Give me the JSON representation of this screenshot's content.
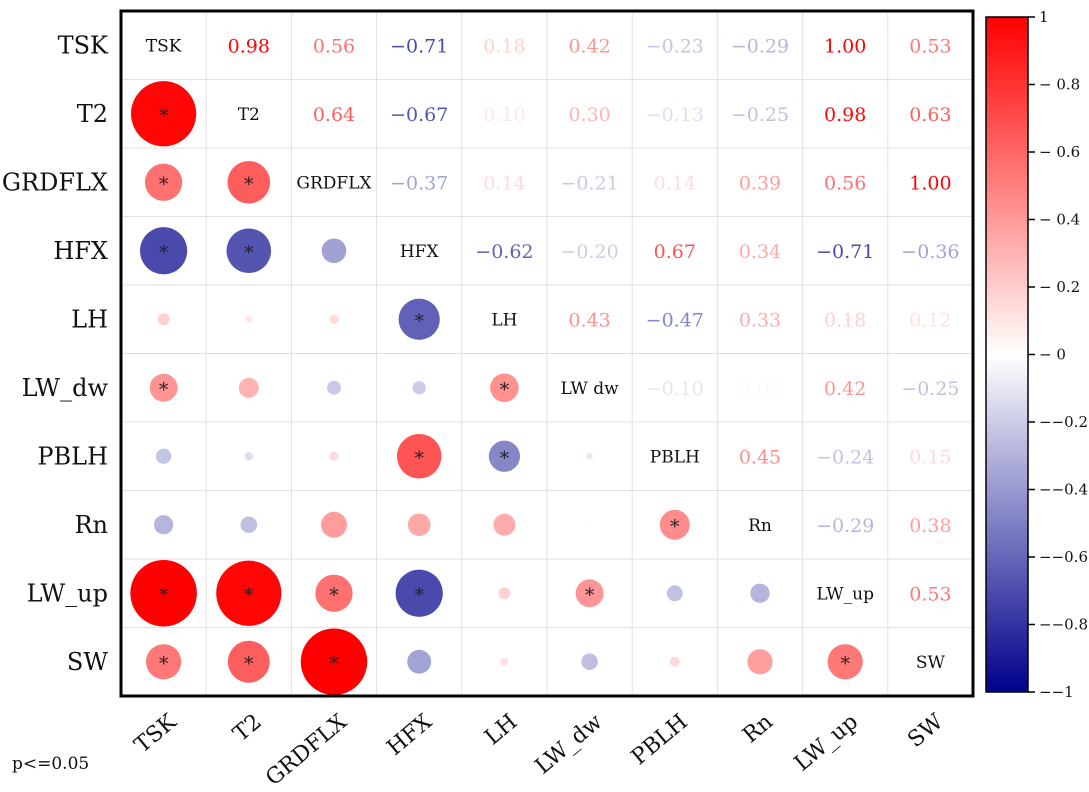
{
  "chart_data": {
    "type": "heatmap",
    "variables": [
      "TSK",
      "T2",
      "GRDFLX",
      "HFX",
      "LH",
      "LW_dw",
      "PBLH",
      "Rn",
      "LW_up",
      "SW"
    ],
    "row_labels": [
      "TSK",
      "T2",
      "GRDFLX",
      "HFX",
      "LH",
      "LW_dw",
      "PBLH",
      "Rn",
      "LW_up",
      "SW"
    ],
    "col_labels": [
      "TSK",
      "T2",
      "GRDFLX",
      "HFX",
      "LH",
      "LW_dw",
      "PBLH",
      "Rn",
      "LW_up",
      "SW"
    ],
    "diagonal_labels": [
      "TSK",
      "T2",
      "GRDFLX",
      "HFX",
      "LH",
      "LW dw",
      "PBLH",
      "Rn",
      "LW_up",
      "SW"
    ],
    "upper_text": [
      [
        null,
        "0.98",
        "0.56",
        "−0.71",
        "0.18",
        "0.42",
        "−0.23",
        "−0.29",
        "1.00",
        "0.53"
      ],
      [
        null,
        null,
        "0.64",
        "−0.67",
        "0.10",
        "0.30",
        "−0.13",
        "−0.25",
        "0.98",
        "0.63"
      ],
      [
        null,
        null,
        null,
        "−0.37",
        "0.14",
        "−0.21",
        "0.14",
        "0.39",
        "0.56",
        "1.00"
      ],
      [
        null,
        null,
        null,
        null,
        "−0.62",
        "−0.20",
        "0.67",
        "0.34",
        "−0.71",
        "−0.36"
      ],
      [
        null,
        null,
        null,
        null,
        null,
        "0.43",
        "−0.47",
        "0.33",
        "0.18",
        "0.12"
      ],
      [
        null,
        null,
        null,
        null,
        null,
        null,
        "−0.10",
        "0.03",
        "0.42",
        "−0.25"
      ],
      [
        null,
        null,
        null,
        null,
        null,
        null,
        null,
        "0.45",
        "−0.24",
        "0.15"
      ],
      [
        null,
        null,
        null,
        null,
        null,
        null,
        null,
        null,
        "−0.29",
        "0.38"
      ],
      [
        null,
        null,
        null,
        null,
        null,
        null,
        null,
        null,
        null,
        "0.53"
      ],
      [
        null,
        null,
        null,
        null,
        null,
        null,
        null,
        null,
        null,
        null
      ]
    ],
    "lower_circles": [
      [
        null,
        null,
        null,
        null,
        null,
        null,
        null,
        null,
        null,
        null
      ],
      [
        0.98,
        null,
        null,
        null,
        null,
        null,
        null,
        null,
        null,
        null
      ],
      [
        0.56,
        0.64,
        null,
        null,
        null,
        null,
        null,
        null,
        null,
        null
      ],
      [
        -0.71,
        -0.67,
        -0.37,
        null,
        null,
        null,
        null,
        null,
        null,
        null
      ],
      [
        0.18,
        0.1,
        0.14,
        -0.62,
        null,
        null,
        null,
        null,
        null,
        null
      ],
      [
        0.42,
        0.3,
        -0.21,
        -0.2,
        0.43,
        null,
        null,
        null,
        null,
        null
      ],
      [
        -0.23,
        -0.13,
        0.14,
        0.67,
        -0.47,
        -0.1,
        null,
        null,
        null,
        null
      ],
      [
        -0.29,
        -0.25,
        0.39,
        0.34,
        0.33,
        0.03,
        0.45,
        null,
        null,
        null
      ],
      [
        1.0,
        0.98,
        0.56,
        -0.71,
        0.18,
        0.42,
        -0.24,
        -0.29,
        null,
        null
      ],
      [
        0.53,
        0.63,
        1.0,
        -0.36,
        0.12,
        -0.25,
        0.15,
        0.38,
        0.53,
        null
      ]
    ],
    "significant": [
      [
        false,
        false,
        false,
        false,
        false,
        false,
        false,
        false,
        false,
        false
      ],
      [
        true,
        false,
        false,
        false,
        false,
        false,
        false,
        false,
        false,
        false
      ],
      [
        true,
        true,
        false,
        false,
        false,
        false,
        false,
        false,
        false,
        false
      ],
      [
        true,
        true,
        false,
        false,
        false,
        false,
        false,
        false,
        false,
        false
      ],
      [
        false,
        false,
        false,
        true,
        false,
        false,
        false,
        false,
        false,
        false
      ],
      [
        true,
        false,
        false,
        false,
        true,
        false,
        false,
        false,
        false,
        false
      ],
      [
        false,
        false,
        false,
        true,
        true,
        false,
        false,
        false,
        false,
        false
      ],
      [
        false,
        false,
        false,
        false,
        false,
        false,
        true,
        false,
        false,
        false
      ],
      [
        true,
        true,
        true,
        true,
        false,
        true,
        false,
        false,
        false,
        false
      ],
      [
        true,
        true,
        true,
        false,
        false,
        false,
        false,
        false,
        true,
        false
      ]
    ],
    "star_symbol": "*",
    "colorbar": {
      "range": [
        -1,
        1
      ],
      "ticks": [
        "1",
        "− 0.8",
        "− 0.6",
        "− 0.4",
        "− 0.2",
        "− 0",
        "−−0.2",
        "−−0.4",
        "−−0.6",
        "−−0.8",
        "−−1"
      ],
      "tick_values": [
        1,
        0.8,
        0.6,
        0.4,
        0.2,
        0,
        -0.2,
        -0.4,
        -0.6,
        -0.8,
        -1
      ],
      "colors": {
        "negative": "#00008b",
        "zero": "#ffffff",
        "positive": "#ff0000"
      }
    },
    "note": "p<=0.05"
  }
}
